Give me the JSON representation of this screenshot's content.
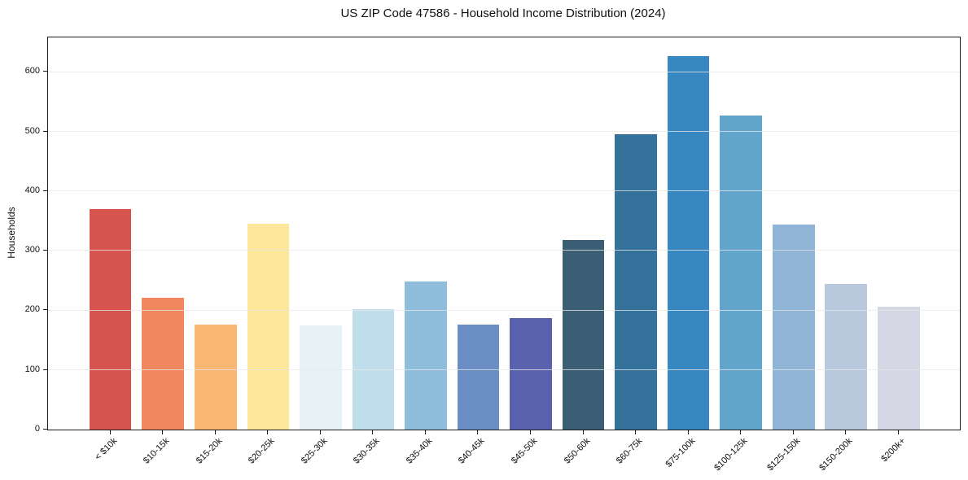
{
  "chart_data": {
    "type": "bar",
    "title": "US ZIP Code 47586 - Household Income Distribution (2024)",
    "xlabel": "",
    "ylabel": "Households",
    "categories": [
      "< $10k",
      "$10-15k",
      "$15-20k",
      "$20-25k",
      "$25-30k",
      "$30-35k",
      "$35-40k",
      "$40-45k",
      "$45-50k",
      "$50-60k",
      "$60-75k",
      "$75-100k",
      "$100-125k",
      "$125-150k",
      "$150-200k",
      "$200k+"
    ],
    "values": [
      370,
      221,
      176,
      346,
      175,
      202,
      248,
      176,
      187,
      318,
      496,
      627,
      527,
      344,
      244,
      206
    ],
    "bar_colors": [
      "#d5544d",
      "#f0875f",
      "#fab773",
      "#fde69a",
      "#e6f2f5",
      "#c0ddec",
      "#8fbddc",
      "#6a8dc3",
      "#5a61ad",
      "#3a5f75",
      "#34729c",
      "#3787c1",
      "#61a5cb",
      "#8fb4d6",
      "#b8c9de",
      "#d6d7e4"
    ],
    "yticks": [
      0,
      100,
      200,
      300,
      400,
      500,
      600
    ],
    "ylim": [
      0,
      658
    ],
    "grid": "horizontal-above-bars",
    "legend_position": "none",
    "axis_color": "#1a1a1a",
    "grid_color": "#e7e7e7",
    "text_color": "#111111"
  }
}
